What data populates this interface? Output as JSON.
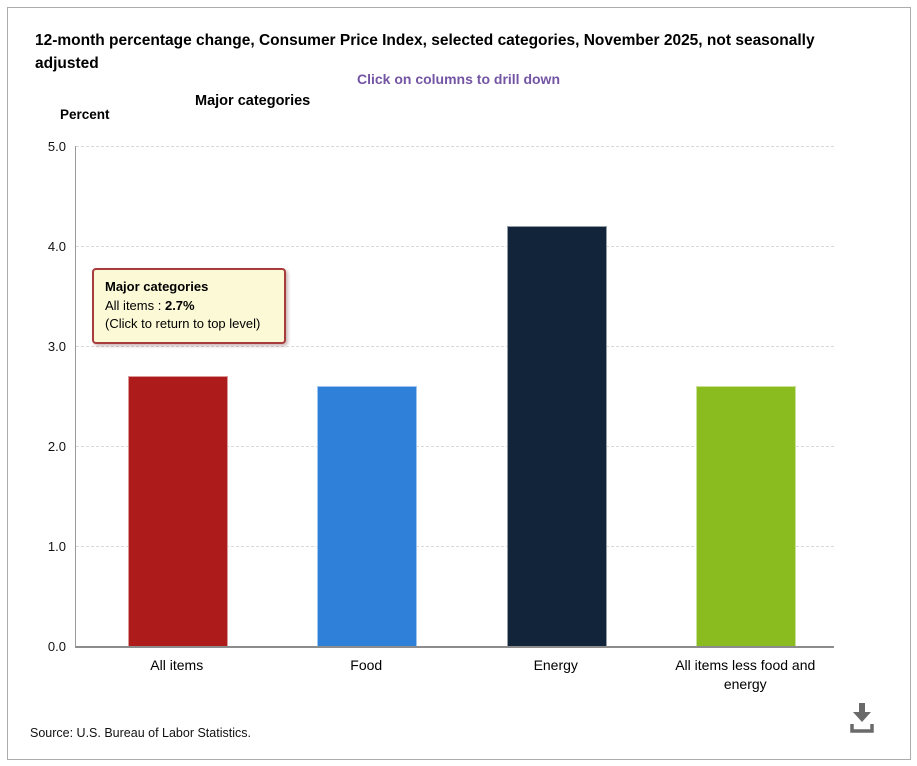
{
  "page": {
    "title": "12-month percentage change, Consumer Price Index, selected categories, November 2025, not seasonally adjusted",
    "subtitle": "Click on columns to drill down",
    "source": "Source: U.S. Bureau of Labor Statistics."
  },
  "chart_data": {
    "type": "bar",
    "title": "Major categories",
    "ylabel": "Percent",
    "categories": [
      "All items",
      "Food",
      "Energy",
      "All items less food and energy"
    ],
    "values": [
      2.7,
      2.6,
      4.2,
      2.6
    ],
    "bar_colors": [
      "#ae1b1b",
      "#2f80d9",
      "#12243a",
      "#8abc20"
    ],
    "ylim": [
      0,
      5
    ],
    "yticks": [
      "5.0",
      "4.0",
      "3.0",
      "2.0",
      "1.0",
      "0.0"
    ],
    "grid": "horizontal dashed",
    "legend": "none"
  },
  "tooltip": {
    "title": "Major categories",
    "label": "All items : ",
    "value": "2.7%",
    "note": "(Click to return to top level)"
  },
  "colors": {
    "subtitle_text": "#7455a3",
    "tooltip_bg": "#fcf9d6",
    "tooltip_border": "#a83b3b",
    "axis": "#9a9a9a",
    "icon_gray": "#6a6a6a"
  },
  "icons": {
    "download": "download-icon"
  }
}
